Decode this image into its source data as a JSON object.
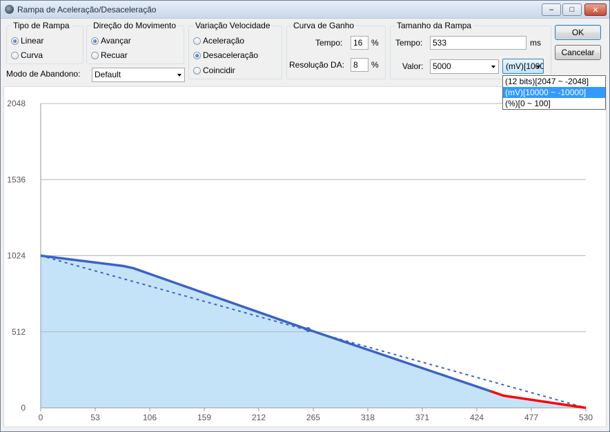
{
  "window": {
    "title": "Rampa de Aceleração/Desaceleração",
    "minimize_glyph": "–",
    "maximize_glyph": "□",
    "close_glyph": "✕"
  },
  "tipo_rampa": {
    "label": "Tipo de Rampa",
    "options": [
      {
        "label": "Linear",
        "checked": true
      },
      {
        "label": "Curva",
        "checked": false
      }
    ]
  },
  "direcao": {
    "label": "Direção do Movimento",
    "options": [
      {
        "label": "Avançar",
        "checked": true
      },
      {
        "label": "Recuar",
        "checked": false
      }
    ]
  },
  "variacao": {
    "label": "Variação Velocidade",
    "options": [
      {
        "label": "Aceleração",
        "checked": false
      },
      {
        "label": "Desaceleração",
        "checked": true
      },
      {
        "label": "Coincidir",
        "checked": false
      }
    ]
  },
  "curva_ganho": {
    "label": "Curva de Ganho",
    "tempo_label": "Tempo:",
    "tempo_value": "16",
    "tempo_unit": "%",
    "resolucao_label": "Resolução DA:",
    "resolucao_value": "8",
    "resolucao_unit": "%"
  },
  "tamanho": {
    "label": "Tamanho da Rampa",
    "tempo_label": "Tempo:",
    "tempo_value": "533",
    "tempo_unit": "ms",
    "valor_label": "Valor:",
    "valor_value": "5000",
    "unit_value": "(mV)[10000 ~ -10000]",
    "unit_options": [
      "(12 bits)[2047 ~ -2048]",
      "(mV)[10000 ~ -10000]",
      "(%)[0 ~ 100]"
    ],
    "unit_selected_index": 1
  },
  "modo_abandono": {
    "label": "Modo de Abandono:",
    "value": "Default"
  },
  "buttons": {
    "ok": "OK",
    "cancel": "Cancelar"
  },
  "colors": {
    "grid": "#b4b4b4",
    "axis": "#9a9a9a",
    "fill": "#c5e3f8",
    "line": "#3b63c4",
    "end_segment": "#ff0000"
  },
  "chart_data": {
    "type": "line",
    "x_ticks": [
      0,
      53,
      106,
      159,
      212,
      265,
      318,
      371,
      424,
      477,
      530
    ],
    "y_ticks": [
      0,
      512,
      1024,
      1536,
      2048
    ],
    "xlim": [
      0,
      530
    ],
    "ylim": [
      0,
      2048
    ],
    "grid": true,
    "series": [
      {
        "style": "solid",
        "points": [
          [
            0,
            1024
          ],
          [
            80,
            955
          ],
          [
            90,
            940
          ],
          [
            260,
            527
          ],
          [
            437,
            113
          ]
        ]
      },
      {
        "style": "dashed",
        "points": [
          [
            0,
            1024
          ],
          [
            530,
            0
          ]
        ]
      },
      {
        "style": "end",
        "points": [
          [
            437,
            113
          ],
          [
            450,
            82
          ],
          [
            530,
            0
          ]
        ]
      }
    ],
    "marker": [
      260,
      527
    ]
  }
}
